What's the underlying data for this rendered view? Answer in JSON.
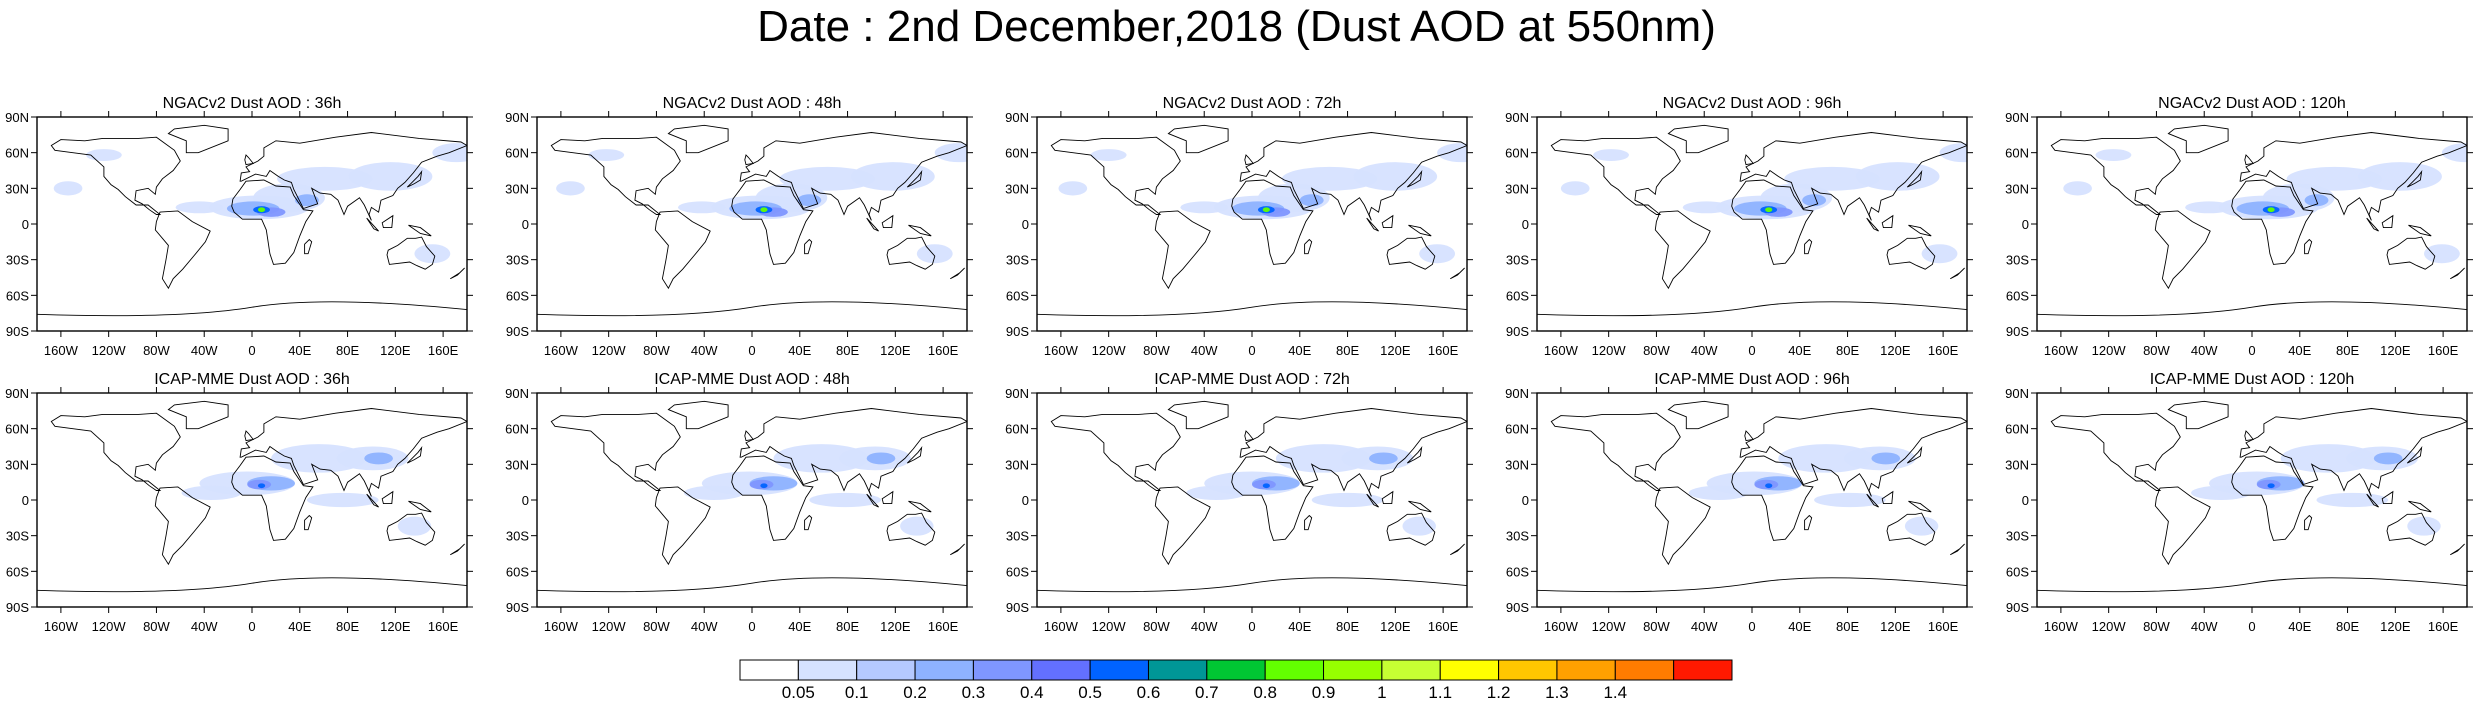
{
  "title": "Date : 2nd December,2018 (Dust AOD at 550nm)",
  "panels": [
    {
      "title": "NGACv2 Dust AOD : 36h",
      "model": "NGACv2",
      "lead": "36h"
    },
    {
      "title": "NGACv2 Dust AOD : 48h",
      "model": "NGACv2",
      "lead": "48h"
    },
    {
      "title": "NGACv2 Dust AOD : 72h",
      "model": "NGACv2",
      "lead": "72h"
    },
    {
      "title": "NGACv2 Dust AOD : 96h",
      "model": "NGACv2",
      "lead": "96h"
    },
    {
      "title": "NGACv2 Dust AOD : 120h",
      "model": "NGACv2",
      "lead": "120h"
    },
    {
      "title": "ICAP-MME Dust AOD : 36h",
      "model": "ICAP-MME",
      "lead": "36h"
    },
    {
      "title": "ICAP-MME Dust AOD : 48h",
      "model": "ICAP-MME",
      "lead": "48h"
    },
    {
      "title": "ICAP-MME Dust AOD : 72h",
      "model": "ICAP-MME",
      "lead": "72h"
    },
    {
      "title": "ICAP-MME Dust AOD : 96h",
      "model": "ICAP-MME",
      "lead": "96h"
    },
    {
      "title": "ICAP-MME Dust AOD : 120h",
      "model": "ICAP-MME",
      "lead": "120h"
    }
  ],
  "axes": {
    "lat_labels": [
      "90N",
      "60N",
      "30N",
      "0",
      "30S",
      "60S",
      "90S"
    ],
    "lat_values": [
      90,
      60,
      30,
      0,
      -30,
      -60,
      -90
    ],
    "lon_labels": [
      "160W",
      "120W",
      "80W",
      "40W",
      "0",
      "40E",
      "80E",
      "120E",
      "160E"
    ],
    "lon_values": [
      -160,
      -120,
      -80,
      -40,
      0,
      40,
      80,
      120,
      160
    ]
  },
  "colorbar": {
    "labels": [
      "0.05",
      "0.1",
      "0.2",
      "0.3",
      "0.4",
      "0.5",
      "0.6",
      "0.7",
      "0.8",
      "0.9",
      "1",
      "1.1",
      "1.2",
      "1.3",
      "1.4"
    ],
    "colors": [
      "#ffffff",
      "#d6e2ff",
      "#b5c9ff",
      "#8eb2ff",
      "#7f96ff",
      "#6370ff",
      "#0063ff",
      "#009696",
      "#00c633",
      "#63ff00",
      "#96ff00",
      "#c6ff33",
      "#ffff00",
      "#ffc600",
      "#ffa000",
      "#ff7c00",
      "#ff1900"
    ]
  }
}
